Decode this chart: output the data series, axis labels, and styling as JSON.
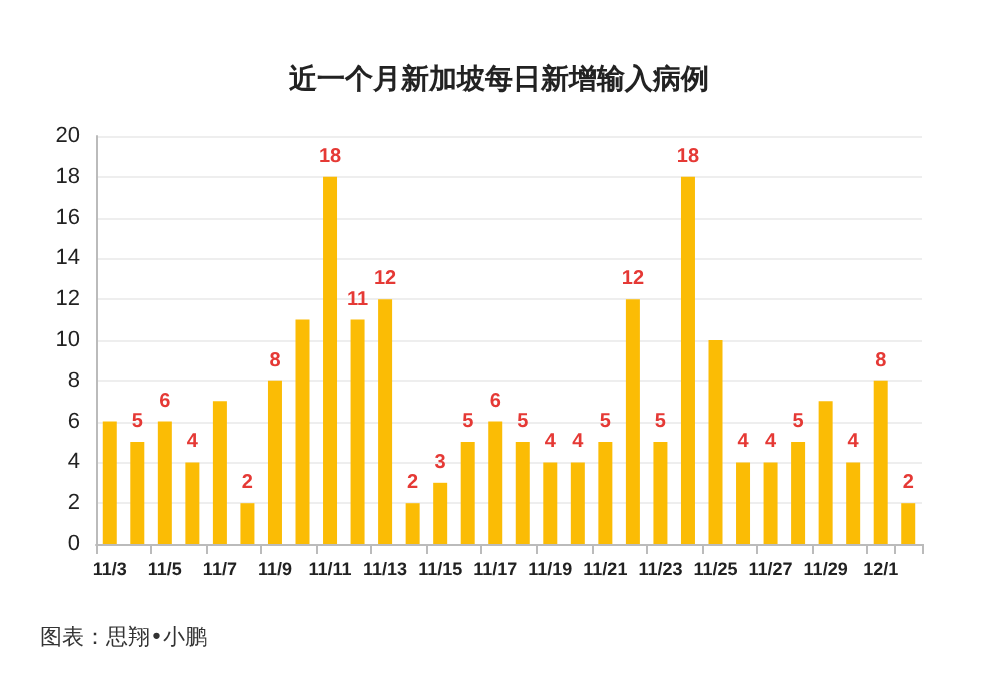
{
  "chart_data": {
    "type": "bar",
    "title": "近一个月新加坡每日新增输入病例",
    "categories": [
      "11/3",
      null,
      "11/5",
      null,
      "11/7",
      null,
      "11/9",
      null,
      "11/11",
      null,
      "11/13",
      null,
      "11/15",
      null,
      "11/17",
      null,
      "11/19",
      null,
      "11/21",
      null,
      "11/23",
      null,
      "11/25",
      null,
      "11/27",
      null,
      "11/29",
      null,
      "12/1",
      null
    ],
    "values": [
      6,
      5,
      6,
      4,
      7,
      2,
      8,
      11,
      18,
      11,
      12,
      2,
      3,
      5,
      6,
      5,
      4,
      4,
      5,
      12,
      5,
      18,
      10,
      4,
      4,
      5,
      7,
      4,
      8,
      2
    ],
    "value_labels": [
      null,
      "5",
      "6",
      "4",
      null,
      "2",
      "8",
      null,
      "18",
      "11",
      "12",
      "2",
      "3",
      "5",
      "6",
      "5",
      "4",
      "4",
      "5",
      "12",
      "5",
      "18",
      null,
      "4",
      "4",
      "5",
      null,
      "4",
      "8",
      "2"
    ],
    "color": "#fbbc05",
    "ylim": [
      0,
      20
    ],
    "yticks": [
      0,
      2,
      4,
      6,
      8,
      10,
      12,
      14,
      16,
      18,
      20
    ],
    "grid": "y",
    "annotations": [
      "图表：思翔•小鹏"
    ]
  }
}
